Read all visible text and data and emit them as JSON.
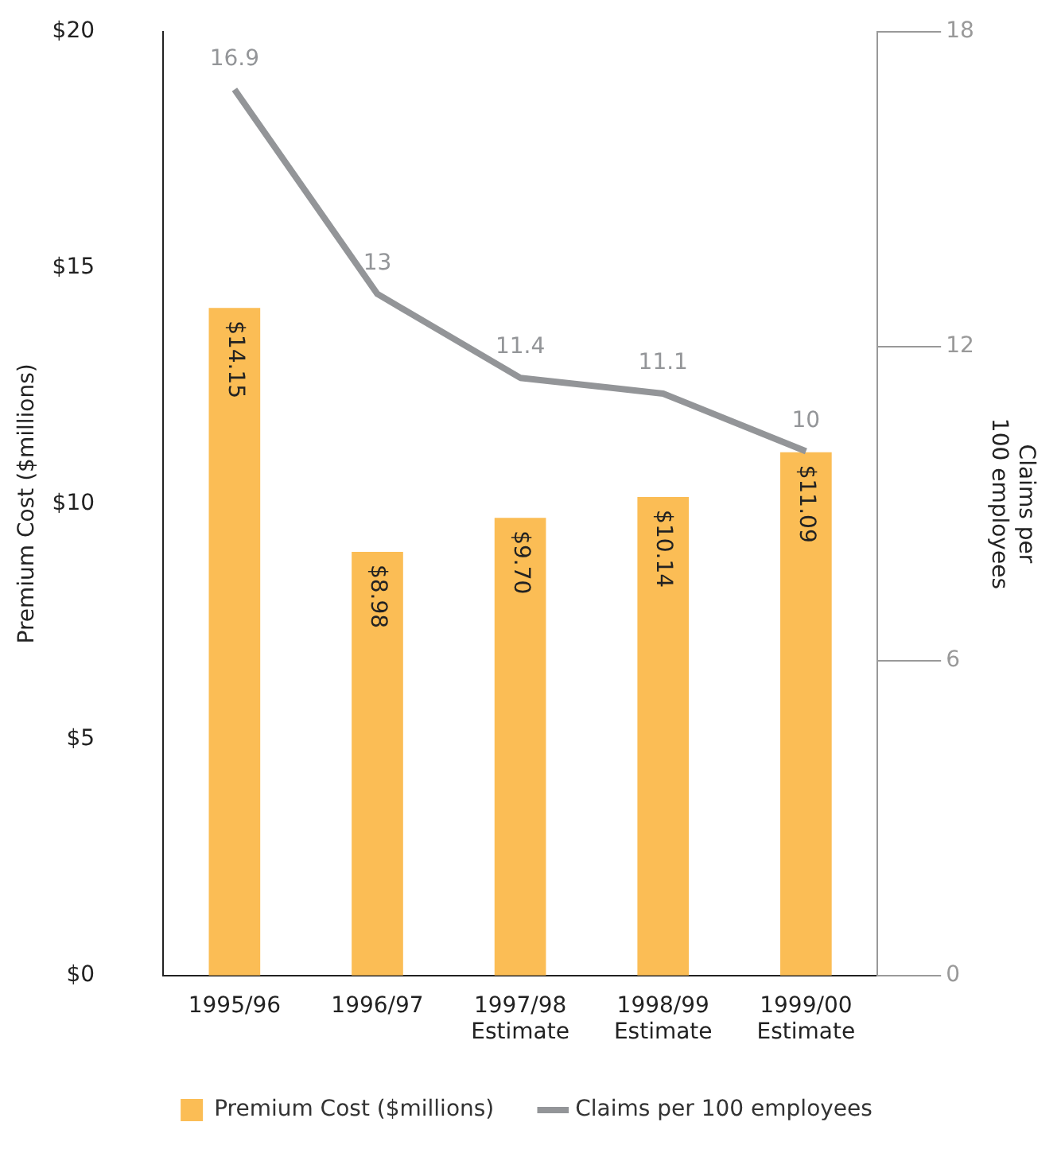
{
  "chart_data": {
    "type": "bar",
    "ylabel": "Premium Cost ($millions)",
    "y2label": "Claims per\n100 employees",
    "categories": [
      "1995/96",
      "1996/97",
      "1997/98\nEstimate",
      "1998/99\nEstimate",
      "1999/00\nEstimate"
    ],
    "series": [
      {
        "name": "Premium Cost ($millions)",
        "color": "#fbbd55",
        "values": [
          14.15,
          8.98,
          9.7,
          10.14,
          11.09
        ],
        "value_labels": [
          "$14.15",
          "$8.98",
          "$9.70",
          "$10.14",
          "$11.09"
        ]
      },
      {
        "name": "Claims per 100 employees",
        "type": "line",
        "axis": "y2",
        "color": "#939598",
        "values": [
          16.9,
          13,
          11.4,
          11.1,
          10
        ],
        "value_labels": [
          "16.9",
          "13",
          "11.4",
          "11.1",
          "10"
        ]
      }
    ],
    "ylim": [
      0,
      20
    ],
    "yticks": [
      {
        "value": 0,
        "label": "$0"
      },
      {
        "value": 5,
        "label": "$5"
      },
      {
        "value": 10,
        "label": "$10"
      },
      {
        "value": 15,
        "label": "$15"
      },
      {
        "value": 20,
        "label": "$20"
      }
    ],
    "y2lim": [
      0,
      18
    ],
    "y2ticks": [
      0,
      6,
      12,
      18
    ],
    "grid": false,
    "legend": "bottom",
    "marker": "none",
    "line_style": "solid"
  }
}
